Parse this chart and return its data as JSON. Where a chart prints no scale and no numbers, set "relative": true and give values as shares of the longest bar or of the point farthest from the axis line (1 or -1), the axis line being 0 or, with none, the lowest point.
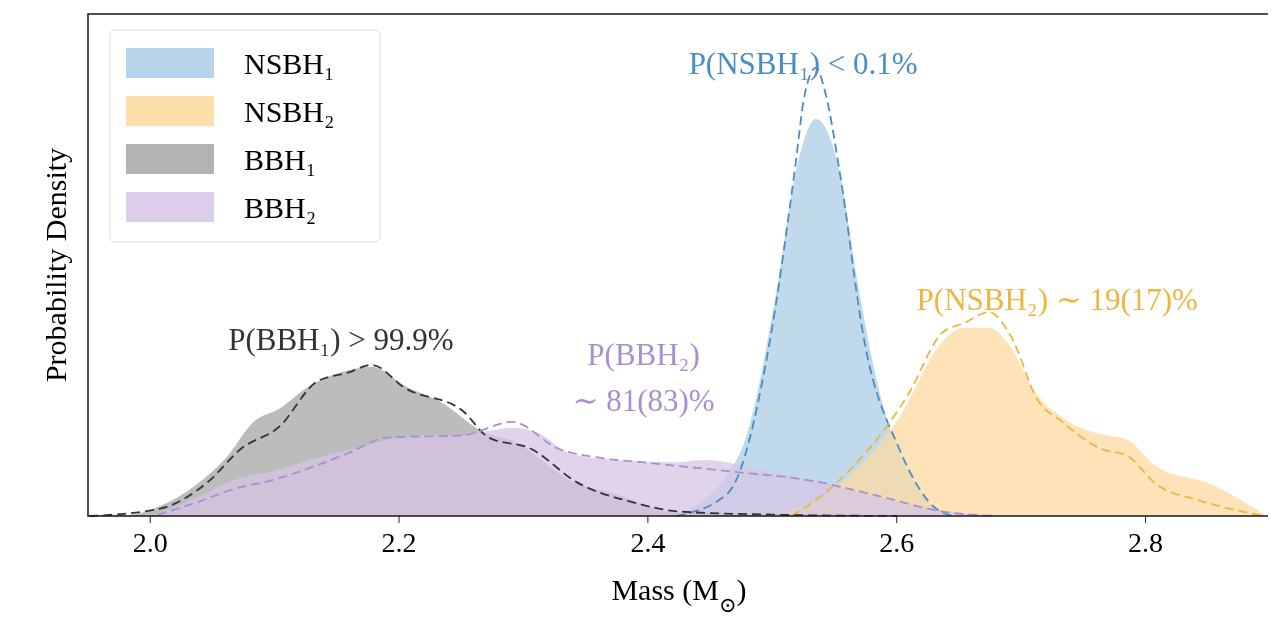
{
  "chart_data": {
    "type": "area",
    "relative": true,
    "xlabel": "Mass (M$_{⊙}$)",
    "ylabel": "Probability Density",
    "xlim": [
      1.95,
      2.9
    ],
    "xticks": [
      {
        "value": 2.0,
        "label": "2.0"
      },
      {
        "value": 2.2,
        "label": "2.2"
      },
      {
        "value": 2.4,
        "label": "2.4"
      },
      {
        "value": 2.6,
        "label": "2.6"
      },
      {
        "value": 2.8,
        "label": "2.8"
      }
    ],
    "legend": "top left",
    "grid": false,
    "annotations": [
      "P(NSBH₁) < 0.1%",
      "P(NSBH₂) ∼ 19(17)%",
      "P(BBH₁) > 99.9%",
      "P(BBH₂)\n∼ 81(83)%"
    ],
    "series": [
      {
        "name": "NSBH₁",
        "color": "#abcde6",
        "x": [
          2.423,
          2.474,
          2.502,
          2.519,
          2.535,
          2.554,
          2.568,
          2.585,
          2.609,
          2.637
        ],
        "values": [
          0,
          0.14,
          0.48,
          0.77,
          0.886,
          0.77,
          0.53,
          0.29,
          0.1,
          0
        ]
      },
      {
        "name": "NSBH₂",
        "color": "#fdd9a0",
        "x": [
          2.492,
          2.554,
          2.602,
          2.637,
          2.654,
          2.674,
          2.688,
          2.713,
          2.733,
          2.768,
          2.785,
          2.809,
          2.854,
          2.897
        ],
        "values": [
          0,
          0.07,
          0.22,
          0.39,
          0.42,
          0.42,
          0.39,
          0.27,
          0.22,
          0.18,
          0.17,
          0.11,
          0.07,
          0
        ]
      },
      {
        "name": "BBH₁",
        "color": "#a6a6a6",
        "x": [
          1.951,
          1.982,
          2.006,
          2.037,
          2.061,
          2.083,
          2.104,
          2.128,
          2.153,
          2.178,
          2.205,
          2.236,
          2.266,
          2.297,
          2.312,
          2.337,
          2.373,
          2.419,
          2.5,
          2.63
        ],
        "values": [
          0,
          0.002,
          0.02,
          0.07,
          0.13,
          0.21,
          0.24,
          0.29,
          0.32,
          0.333,
          0.29,
          0.25,
          0.19,
          0.16,
          0.13,
          0.08,
          0.05,
          0.01,
          0.005,
          0
        ]
      },
      {
        "name": "BBH₂",
        "color": "#d5c6e6",
        "x": [
          2.006,
          2.037,
          2.067,
          2.098,
          2.134,
          2.165,
          2.19,
          2.22,
          2.251,
          2.272,
          2.291,
          2.312,
          2.337,
          2.373,
          2.422,
          2.447,
          2.481,
          2.533,
          2.574,
          2.619,
          2.68
        ],
        "values": [
          0.005,
          0.04,
          0.08,
          0.1,
          0.13,
          0.15,
          0.17,
          0.18,
          0.18,
          0.19,
          0.197,
          0.185,
          0.14,
          0.125,
          0.12,
          0.125,
          0.11,
          0.08,
          0.05,
          0.02,
          0
        ]
      },
      {
        "type": "line",
        "line_style": "dashed",
        "color": "#4a8cc4",
        "x": [
          2.423,
          2.464,
          2.498,
          2.518,
          2.526,
          2.535,
          2.543,
          2.554,
          2.574,
          2.602,
          2.63,
          2.645
        ],
        "values": [
          0,
          0.05,
          0.39,
          0.77,
          0.94,
          1,
          0.94,
          0.77,
          0.39,
          0.15,
          0.02,
          0
        ]
      },
      {
        "type": "line",
        "line_style": "dashed",
        "color": "#eeb540",
        "x": [
          2.516,
          2.55,
          2.609,
          2.637,
          2.654,
          2.674,
          2.692,
          2.713,
          2.733,
          2.764,
          2.785,
          2.809,
          2.843,
          2.895
        ],
        "values": [
          0,
          0.07,
          0.27,
          0.41,
          0.43,
          0.455,
          0.4,
          0.26,
          0.21,
          0.15,
          0.135,
          0.07,
          0.035,
          0
        ]
      },
      {
        "type": "line",
        "line_style": "dashed",
        "color": "#333333",
        "x": [
          1.951,
          2.006,
          2.046,
          2.073,
          2.104,
          2.134,
          2.159,
          2.178,
          2.205,
          2.251,
          2.272,
          2.306,
          2.343,
          2.389,
          2.425,
          2.5,
          2.6
        ],
        "values": [
          0,
          0.015,
          0.075,
          0.15,
          0.2,
          0.3,
          0.32,
          0.337,
          0.285,
          0.235,
          0.175,
          0.15,
          0.075,
          0.03,
          0.01,
          0.003,
          0
        ]
      },
      {
        "type": "line",
        "line_style": "dashed",
        "color": "#a98fcf",
        "x": [
          2.006,
          2.037,
          2.067,
          2.098,
          2.159,
          2.19,
          2.251,
          2.291,
          2.328,
          2.361,
          2.395,
          2.464,
          2.533,
          2.585,
          2.637,
          2.68
        ],
        "values": [
          0.003,
          0.03,
          0.06,
          0.08,
          0.14,
          0.175,
          0.18,
          0.21,
          0.15,
          0.13,
          0.12,
          0.1,
          0.078,
          0.045,
          0.01,
          0
        ]
      }
    ]
  }
}
